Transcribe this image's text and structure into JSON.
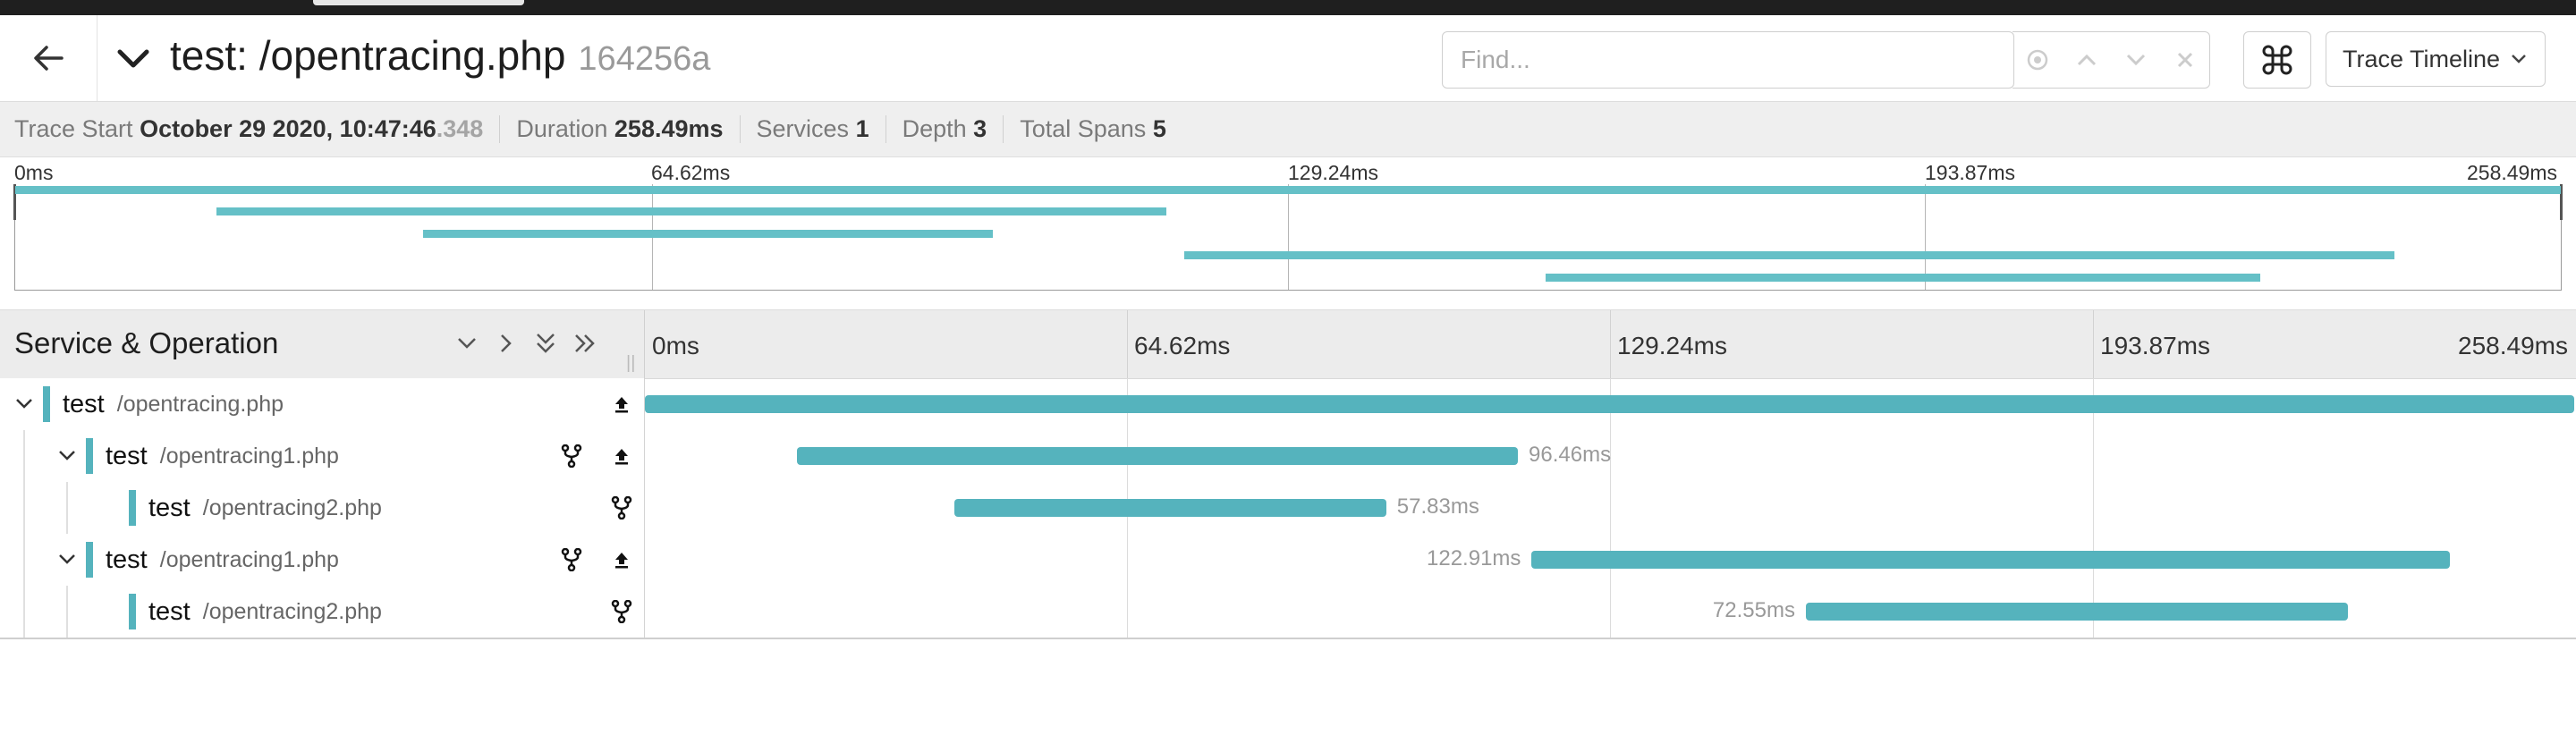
{
  "header": {
    "title_service": "test: /opentracing.php",
    "trace_id": "164256a",
    "find_placeholder": "Find...",
    "view_label": "Trace Timeline"
  },
  "summary": {
    "trace_start_label": "Trace Start",
    "trace_start_value": "October 29 2020, 10:47:46",
    "trace_start_ms": ".348",
    "duration_label": "Duration",
    "duration_value": "258.49ms",
    "services_label": "Services",
    "services_value": "1",
    "depth_label": "Depth",
    "depth_value": "3",
    "total_spans_label": "Total Spans",
    "total_spans_value": "5"
  },
  "ticks": [
    "0ms",
    "64.62ms",
    "129.24ms",
    "193.87ms",
    "258.49ms"
  ],
  "timeline": {
    "column_title": "Service & Operation"
  },
  "spans": [
    {
      "service": "test",
      "operation": "/opentracing.php",
      "start_ms": 0,
      "duration_ms": 258.49,
      "duration_label": ""
    },
    {
      "service": "test",
      "operation": "/opentracing1.php",
      "start_ms": 20.4,
      "duration_ms": 96.46,
      "duration_label": "96.46ms"
    },
    {
      "service": "test",
      "operation": "/opentracing2.php",
      "start_ms": 41.4,
      "duration_ms": 57.83,
      "duration_label": "57.83ms"
    },
    {
      "service": "test",
      "operation": "/opentracing1.php",
      "start_ms": 118.7,
      "duration_ms": 122.91,
      "duration_label": "122.91ms"
    },
    {
      "service": "test",
      "operation": "/opentracing2.php",
      "start_ms": 155.4,
      "duration_ms": 72.55,
      "duration_label": "72.55ms"
    }
  ],
  "colors": {
    "span_bar": "#55b3bd",
    "minimap_bar": "#65c0c7"
  }
}
